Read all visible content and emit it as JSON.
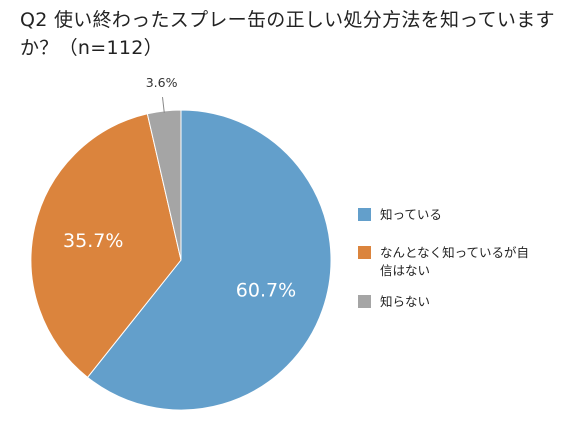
{
  "chart_data": {
    "type": "pie",
    "title": "Q2 使い終わったスプレー缶の正しい処分方法を知っていますか？（n=112）",
    "categories": [
      "知っている",
      "なんとなく知っているが自信はない",
      "知らない"
    ],
    "values": [
      60.7,
      35.7,
      3.6
    ],
    "data_labels": [
      "60.7%",
      "35.7%",
      "3.6%"
    ],
    "colors": [
      "#639FCB",
      "#DB843D",
      "#A5A5A5"
    ],
    "legend_position": "right"
  }
}
